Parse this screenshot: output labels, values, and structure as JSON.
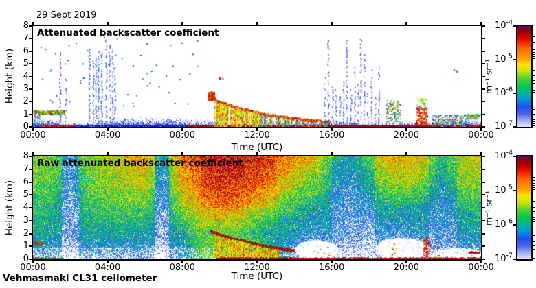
{
  "page": {
    "date_label": "29 Sept 2019",
    "instrument_label": "Vehmasmaki CL31 ceilometer"
  },
  "axes": {
    "time_label": "Time (UTC)",
    "height_label": "Height (km)",
    "time_tick_labels": [
      "00:00",
      "04:00",
      "08:00",
      "12:00",
      "16:00",
      "20:00",
      "00:00"
    ],
    "time_tick_hours": [
      0,
      4,
      8,
      12,
      16,
      20,
      24
    ],
    "height_tick_labels": [
      "0",
      "1",
      "2",
      "3",
      "4",
      "5",
      "6",
      "7",
      "8"
    ],
    "time_range_hours": [
      0,
      24
    ],
    "height_range_km": [
      0,
      8
    ]
  },
  "colorbar": {
    "unit": "m⁻¹ sr⁻¹",
    "scale": "log",
    "range": [
      "1e-7",
      "1e-4"
    ],
    "tick_labels": [
      {
        "mantissa": "10",
        "exponent": "-4"
      },
      {
        "mantissa": "10",
        "exponent": "-5"
      },
      {
        "mantissa": "10",
        "exponent": "-6"
      },
      {
        "mantissa": "10",
        "exponent": "-7"
      }
    ],
    "stops": [
      {
        "v": 0.0,
        "c": "#e4e4fb"
      },
      {
        "v": 0.07,
        "c": "#9ba6ef"
      },
      {
        "v": 0.13,
        "c": "#4a64e8"
      },
      {
        "v": 0.2,
        "c": "#1e50f0"
      },
      {
        "v": 0.27,
        "c": "#0096dc"
      },
      {
        "v": 0.335,
        "c": "#00b49b"
      },
      {
        "v": 0.4,
        "c": "#00c850"
      },
      {
        "v": 0.48,
        "c": "#50d232"
      },
      {
        "v": 0.55,
        "c": "#c8e600"
      },
      {
        "v": 0.62,
        "c": "#ffe000"
      },
      {
        "v": 0.67,
        "c": "#ffa500"
      },
      {
        "v": 0.78,
        "c": "#ff6400"
      },
      {
        "v": 0.88,
        "c": "#e00000"
      },
      {
        "v": 0.94,
        "c": "#a00000"
      },
      {
        "v": 1.0,
        "c": "#5c0a5c"
      }
    ]
  },
  "chart_data": [
    {
      "type": "heatmap",
      "title": "Attenuated backscatter coefficient",
      "xlabel": "Time (UTC)",
      "ylabel": "Height (km)",
      "x_range_hours": [
        0,
        24
      ],
      "y_range_km": [
        0,
        8
      ],
      "value_range": [
        "1e-7",
        "1e-4"
      ],
      "units": "m⁻¹ sr⁻¹",
      "style": "sparse",
      "seed": 20190929,
      "boundary_layer_top_km": [
        [
          0,
          0.5
        ],
        [
          0.8,
          0.55
        ],
        [
          1.5,
          0.3
        ],
        [
          2,
          0.2
        ],
        [
          2.5,
          0.25
        ],
        [
          3,
          0.3
        ],
        [
          4,
          0.5
        ],
        [
          5,
          0.6
        ],
        [
          6,
          0.65
        ],
        [
          7,
          0.6
        ],
        [
          8,
          0.55
        ],
        [
          9,
          0.45
        ],
        [
          10,
          0.3
        ],
        [
          11,
          0.28
        ],
        [
          12,
          0.3
        ],
        [
          13,
          0.32
        ],
        [
          14,
          0.28
        ],
        [
          15,
          0.3
        ],
        [
          16,
          0.38
        ],
        [
          17,
          0.32
        ],
        [
          18,
          0.28
        ],
        [
          19,
          0.32
        ],
        [
          20,
          0.28
        ],
        [
          21,
          0.32
        ],
        [
          22,
          0.45
        ],
        [
          23,
          0.5
        ],
        [
          24,
          0.45
        ]
      ],
      "features": [
        {
          "kind": "stripe",
          "name": "start-low-aerosol",
          "t": [
            0,
            0.4
          ],
          "h": [
            0,
            1.3
          ],
          "density": 0.45,
          "colors": [
            "#2846e6",
            "#4a64e8",
            "#00b4d2"
          ]
        },
        {
          "kind": "stripe",
          "name": "morning-cloud-layer",
          "t": [
            0,
            1.7
          ],
          "h": [
            0.95,
            1.35
          ],
          "density": 1.6,
          "colors": [
            "#28b428",
            "#50dc50",
            "#28b428",
            "#ffe000",
            "#e03200",
            "#a00000"
          ]
        },
        {
          "kind": "ground_line",
          "name": "ground-return",
          "t": [
            0.25,
            2.3
          ],
          "colors": [
            "#b40000",
            "#e03c00"
          ]
        },
        {
          "kind": "ground_line",
          "name": "ground-return",
          "t": [
            8.3,
            24
          ],
          "colors": [
            "#960000",
            "#c81e00",
            "#b40000"
          ]
        },
        {
          "kind": "streaks",
          "name": "early-streaks",
          "t": [
            1.35,
            1.8
          ],
          "count": 2,
          "h_base": 0.4,
          "h_top": [
            4,
            6.6
          ],
          "density": 0.5,
          "colors": [
            "#2846e6"
          ]
        },
        {
          "kind": "streaks",
          "name": "pre-dawn-streaks",
          "t": [
            2.9,
            4.5
          ],
          "count": 9,
          "h_base": 0.35,
          "h_top": [
            4.8,
            7.3
          ],
          "density": 0.55,
          "colors": [
            "#2846e6",
            "#3c5af0"
          ]
        },
        {
          "kind": "dots",
          "name": "scattered-echoes",
          "t": [
            0.3,
            9.3
          ],
          "h": [
            1,
            7.2
          ],
          "count": 60,
          "colors": [
            "#2846e6",
            "#4a64e8",
            "#2846e6",
            "#00b4b4"
          ]
        },
        {
          "kind": "dots",
          "name": "orange-speck",
          "t": [
            0.8,
            1.0
          ],
          "h": [
            7.3,
            7.5
          ],
          "count": 2,
          "colors": [
            "#ff8c00",
            "#e03200"
          ]
        },
        {
          "kind": "arc",
          "name": "descending-precip-band",
          "pts": [
            [
              9.4,
              2.55
            ],
            [
              9.6,
              2.35
            ],
            [
              9.9,
              2.05
            ],
            [
              10.3,
              1.85
            ],
            [
              10.8,
              1.6
            ],
            [
              11.5,
              1.35
            ],
            [
              12.3,
              1.05
            ],
            [
              13.2,
              0.85
            ],
            [
              14.2,
              0.65
            ],
            [
              15.2,
              0.5
            ],
            [
              15.9,
              0.4
            ]
          ],
          "thickness": 3,
          "colors": [
            "#c80000",
            "#e05000",
            "#ff8c00",
            "#a00000"
          ],
          "blob": {
            "t": [
              9.35,
              9.7
            ],
            "h": [
              2.15,
              2.8
            ]
          }
        },
        {
          "kind": "dots",
          "name": "red-specks",
          "t": [
            9.95,
            10.2
          ],
          "h": [
            3.8,
            4.0
          ],
          "count": 4,
          "colors": [
            "#d20000"
          ]
        },
        {
          "kind": "columns",
          "name": "precip-shafts",
          "t": [
            9.7,
            12.2
          ],
          "top_follow_arc": true,
          "density": 0.85,
          "colors": [
            "#ffe000",
            "#c8e600",
            "#50c832",
            "#ff8c00",
            "#ffe000",
            "#e03200"
          ]
        },
        {
          "kind": "columns",
          "name": "mixed-shafts",
          "t": [
            12.2,
            15.8
          ],
          "top_follow_arc": true,
          "density": 0.55,
          "colors": [
            "#e03200",
            "#2846e6",
            "#00b4b4",
            "#ffe000",
            "#50c832",
            "#ff8c00"
          ]
        },
        {
          "kind": "streaks",
          "name": "evening-streaks",
          "t": [
            15.55,
            18.6
          ],
          "count": 16,
          "h_base": 0.3,
          "h_top": [
            2.2,
            7.3
          ],
          "density": 0.45,
          "colors": [
            "#2846e6",
            "#3c5af0"
          ]
        },
        {
          "kind": "stripe",
          "name": "evening-clumps",
          "t": [
            18.9,
            19.7
          ],
          "h": [
            0.3,
            2.1
          ],
          "density": 0.5,
          "colors": [
            "#28b428",
            "#50dc50",
            "#ffe000",
            "#e03200",
            "#2846e6",
            "#28b428"
          ]
        },
        {
          "kind": "stripe",
          "name": "red-column",
          "t": [
            20.5,
            21.15
          ],
          "h": [
            0.1,
            1.6
          ],
          "density": 0.9,
          "colors": [
            "#d20000",
            "#e03200",
            "#ff8c00",
            "#d20000"
          ]
        },
        {
          "kind": "stripe",
          "name": "green-cap",
          "t": [
            20.55,
            21.1
          ],
          "h": [
            1.6,
            2.3
          ],
          "density": 0.6,
          "colors": [
            "#28b428",
            "#ffe000",
            "#50dc50"
          ]
        },
        {
          "kind": "stripe",
          "name": "late-mixed-band",
          "t": [
            21.3,
            23.2
          ],
          "h": [
            0,
            1.0
          ],
          "density": 0.55,
          "colors": [
            "#2846e6",
            "#28b428",
            "#e03200",
            "#00b4b4",
            "#ffe000",
            "#2846e6"
          ]
        },
        {
          "kind": "stripe",
          "name": "late-green-bar",
          "t": [
            23.2,
            24
          ],
          "h": [
            0.6,
            1.05
          ],
          "density": 1.2,
          "colors": [
            "#28b428",
            "#50dc50",
            "#28b428",
            "#e03200"
          ]
        },
        {
          "kind": "dots",
          "name": "red-specks",
          "t": [
            22.5,
            22.8
          ],
          "h": [
            4.4,
            4.6
          ],
          "count": 3,
          "colors": [
            "#d20000"
          ]
        }
      ]
    },
    {
      "type": "heatmap",
      "title": "Raw attenuated backscatter coefficient",
      "xlabel": "Time (UTC)",
      "ylabel": "Height (km)",
      "x_range_hours": [
        0,
        24
      ],
      "y_range_km": [
        0,
        8
      ],
      "value_range": [
        "1e-7",
        "1e-4"
      ],
      "units": "m⁻¹ sr⁻¹",
      "style": "dense",
      "seed": 929,
      "base_grid": {
        "t_hours": [
          0,
          1,
          2,
          3,
          4,
          5,
          6,
          7,
          8,
          9,
          10,
          11,
          12,
          13,
          14,
          15,
          16,
          17,
          18,
          19,
          20,
          21,
          22,
          23,
          24
        ],
        "h_km": [
          8,
          6,
          4,
          2,
          0
        ],
        "values": [
          [
            0.52,
            0.46,
            0.4,
            0.33,
            0.15
          ],
          [
            0.5,
            0.45,
            0.38,
            0.32,
            0.14
          ],
          [
            0.36,
            0.32,
            0.29,
            0.27,
            0.12
          ],
          [
            0.5,
            0.48,
            0.4,
            0.31,
            0.13
          ],
          [
            0.56,
            0.52,
            0.44,
            0.32,
            0.13
          ],
          [
            0.63,
            0.55,
            0.44,
            0.32,
            0.13
          ],
          [
            0.7,
            0.6,
            0.45,
            0.31,
            0.12
          ],
          [
            0.44,
            0.37,
            0.3,
            0.26,
            0.12
          ],
          [
            0.74,
            0.66,
            0.52,
            0.34,
            0.18
          ],
          [
            0.82,
            0.76,
            0.64,
            0.46,
            0.4
          ],
          [
            0.85,
            0.8,
            0.7,
            0.48,
            0.55
          ],
          [
            0.85,
            0.79,
            0.68,
            0.44,
            0.5
          ],
          [
            0.82,
            0.74,
            0.58,
            0.38,
            0.45
          ],
          [
            0.78,
            0.67,
            0.48,
            0.3,
            0.32
          ],
          [
            0.72,
            0.58,
            0.4,
            0.26,
            0.16
          ],
          [
            0.65,
            0.48,
            0.33,
            0.2,
            0.07
          ],
          [
            0.46,
            0.35,
            0.29,
            0.23,
            0.09
          ],
          [
            0.39,
            0.32,
            0.27,
            0.24,
            0.11
          ],
          [
            0.55,
            0.44,
            0.3,
            0.2,
            0.08
          ],
          [
            0.64,
            0.53,
            0.33,
            0.18,
            0.08
          ],
          [
            0.67,
            0.54,
            0.34,
            0.18,
            0.08
          ],
          [
            0.6,
            0.49,
            0.31,
            0.23,
            0.11
          ],
          [
            0.46,
            0.4,
            0.29,
            0.25,
            0.13
          ],
          [
            0.6,
            0.5,
            0.37,
            0.27,
            0.12
          ],
          [
            0.62,
            0.52,
            0.39,
            0.29,
            0.13
          ]
        ]
      },
      "features": [
        {
          "kind": "tint",
          "name": "blue-band",
          "t": [
            1.55,
            2.45
          ],
          "dv": -0.16
        },
        {
          "kind": "tint",
          "name": "blue-band",
          "t": [
            6.55,
            7.3
          ],
          "dv": -0.18
        },
        {
          "kind": "tint",
          "name": "blue-band",
          "t": [
            16.0,
            18.3
          ],
          "dv": -0.1
        },
        {
          "kind": "tint",
          "name": "blue-band",
          "t": [
            21.2,
            22.7
          ],
          "dv": -0.08
        },
        {
          "kind": "tint",
          "name": "hot-top",
          "t": [
            9.0,
            13.0
          ],
          "h": [
            4,
            8
          ],
          "dv": 0.05
        },
        {
          "kind": "arc",
          "name": "descending-precip-band",
          "pts": [
            [
              9.5,
              2.2
            ],
            [
              10,
              1.9
            ],
            [
              10.8,
              1.6
            ],
            [
              11.5,
              1.35
            ],
            [
              12.3,
              1.05
            ],
            [
              13.2,
              0.85
            ],
            [
              14.2,
              0.65
            ],
            [
              15.2,
              0.5
            ],
            [
              16,
              0.38
            ]
          ],
          "thickness": 2.5,
          "colors": [
            "#8c0000",
            "#c80000",
            "#a00000"
          ]
        },
        {
          "kind": "columns",
          "name": "precip-shafts",
          "t": [
            9.7,
            13.2
          ],
          "top_follow_arc": true,
          "density": 0.9,
          "colors": [
            "#ffe000",
            "#ff8c00",
            "#c8e600",
            "#50c832",
            "#e03200",
            "#ffe000"
          ]
        },
        {
          "kind": "white_blob",
          "name": "attenuated-zone",
          "t": [
            14.0,
            16.3
          ],
          "h": [
            0,
            1.5
          ],
          "density": 0.75
        },
        {
          "kind": "white_blob",
          "name": "attenuated-zone",
          "t": [
            18.3,
            21.2
          ],
          "h": [
            0,
            1.7
          ],
          "density": 0.7
        },
        {
          "kind": "white_blob",
          "name": "attenuated-zone",
          "t": [
            21.5,
            24
          ],
          "h": [
            0,
            0.9
          ],
          "density": 0.5
        },
        {
          "kind": "ground_line",
          "name": "ground-return",
          "t": [
            9.8,
            24
          ],
          "colors": [
            "#8c0000",
            "#c80000"
          ]
        },
        {
          "kind": "ground_line",
          "name": "ground-return",
          "t": [
            0,
            1.6
          ],
          "colors": [
            "#28a028",
            "#c80000",
            "#28a028"
          ]
        },
        {
          "kind": "stripe",
          "name": "morning-cloud-layer",
          "t": [
            0,
            0.55
          ],
          "h": [
            1.1,
            1.4
          ],
          "density": 1.2,
          "colors": [
            "#c80000",
            "#e05000",
            "#28b428"
          ]
        },
        {
          "kind": "stripe",
          "name": "red-column",
          "t": [
            20.9,
            21.25
          ],
          "h": [
            0.05,
            1.7
          ],
          "density": 0.85,
          "colors": [
            "#d20000",
            "#e03200",
            "#d20000",
            "#ff8c00"
          ]
        },
        {
          "kind": "dots",
          "name": "low-clumps",
          "t": [
            19.2,
            19.6
          ],
          "h": [
            0.2,
            1.3
          ],
          "count": 10,
          "colors": [
            "#d20000",
            "#28b428",
            "#ffe000"
          ]
        },
        {
          "kind": "dots",
          "name": "low-clumps",
          "t": [
            21.4,
            21.8
          ],
          "h": [
            0.2,
            1.0
          ],
          "count": 8,
          "colors": [
            "#d20000",
            "#ffe000",
            "#28b428"
          ]
        },
        {
          "kind": "stripe",
          "name": "maroon-dash",
          "t": [
            23.3,
            23.95
          ],
          "h": [
            0.45,
            0.6
          ],
          "density": 1.4,
          "colors": [
            "#8c0000",
            "#a00000"
          ]
        }
      ]
    }
  ]
}
